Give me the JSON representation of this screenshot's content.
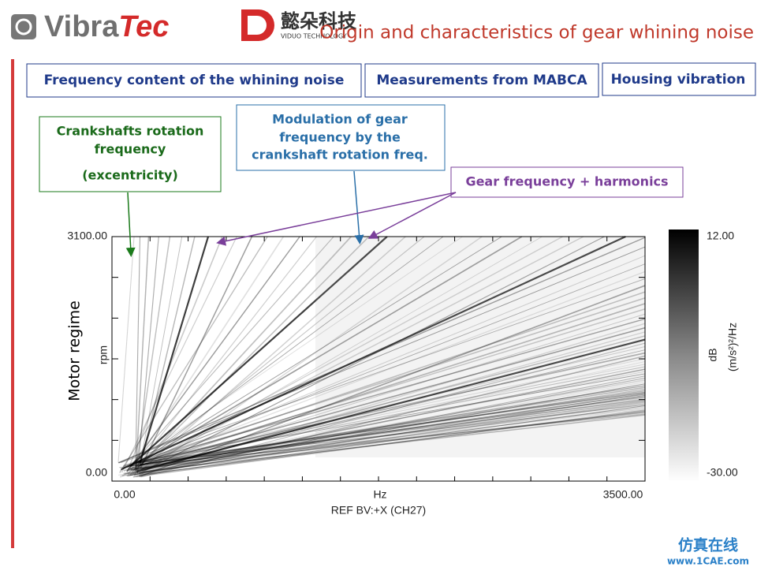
{
  "header": {
    "logo_parts": [
      "Vibra",
      "Tec"
    ],
    "logo_cn": "懿朵科技",
    "logo_cn_sub": "VIDUO TECHNOLOGY",
    "title": "Origin and characteristics of gear whining noise"
  },
  "tabs": [
    "Frequency content of the whining noise",
    "Measurements from MABCA",
    "Housing vibration"
  ],
  "callouts": [
    {
      "lines": [
        "Crankshafts rotation",
        "frequency",
        "(excentricity)"
      ]
    },
    {
      "lines": [
        "Modulation of gear",
        "frequency by the",
        "crankshaft rotation freq."
      ]
    },
    {
      "lines": [
        "Gear frequency + harmonics"
      ]
    }
  ],
  "plot": {
    "side_label": "Motor regime",
    "y_label": "rpm",
    "y_top": "3100.00",
    "y_bottom": "0.00",
    "x_left": "0.00",
    "x_mid": "Hz",
    "x_right": "3500.00",
    "x_title": "REF  BV:+X (CH27)",
    "colorbar_top": "12.00",
    "colorbar_bottom": "-30.00",
    "colorbar_label": "dB",
    "colorbar_unit": "(m/s²)²/Hz"
  },
  "watermark": {
    "cn": "仿真在线",
    "url": "www.1CAE.com"
  }
}
